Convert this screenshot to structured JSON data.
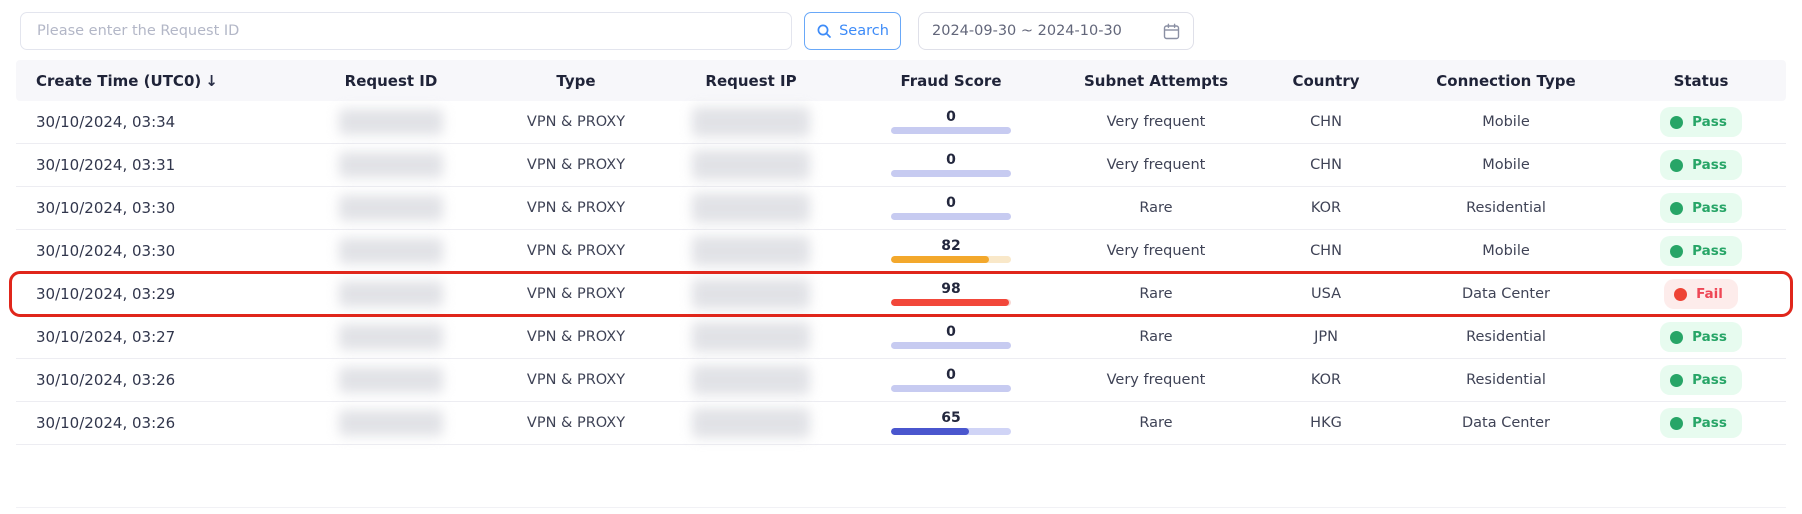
{
  "toolbar": {
    "search_placeholder": "Please enter the Request ID",
    "search_label": "Search",
    "date_range": "2024-09-30 ~ 2024-10-30",
    "icons": {
      "search": "search-icon",
      "calendar": "calendar-icon"
    },
    "accent_blue": "#3d8bf8"
  },
  "table": {
    "columns": [
      "Create Time (UTC0)",
      "Request ID",
      "Type",
      "Request IP",
      "Fraud Score",
      "Subnet Attempts",
      "Country",
      "Connection Type",
      "Status"
    ],
    "sort": {
      "column": "Create Time (UTC0)",
      "direction": "desc",
      "icon": "↓",
      "icon_name": "sort-desc-icon"
    },
    "status_styles": {
      "Pass": {
        "bg": "#e7fbef",
        "dot": "#27a567",
        "text": "#27a567"
      },
      "Fail": {
        "bg": "#fdeceb",
        "dot": "#ee4335",
        "text": "#ee4756"
      }
    },
    "rows": [
      {
        "create_time": "30/10/2024, 03:34",
        "request_id": "[redacted]",
        "type": "VPN & PROXY",
        "request_ip": "[redacted]",
        "fraud_score": 0,
        "bar_fill": "#c7cbf1",
        "bar_track": "#c7cbf1",
        "subnet_attempts": "Very frequent",
        "country": "CHN",
        "connection_type": "Mobile",
        "status": "Pass",
        "highlighted": false
      },
      {
        "create_time": "30/10/2024, 03:31",
        "request_id": "[redacted]",
        "type": "VPN & PROXY",
        "request_ip": "[redacted]",
        "fraud_score": 0,
        "bar_fill": "#c7cbf1",
        "bar_track": "#c7cbf1",
        "subnet_attempts": "Very frequent",
        "country": "CHN",
        "connection_type": "Mobile",
        "status": "Pass",
        "highlighted": false
      },
      {
        "create_time": "30/10/2024, 03:30",
        "request_id": "[redacted]",
        "type": "VPN & PROXY",
        "request_ip": "[redacted]",
        "fraud_score": 0,
        "bar_fill": "#c7cbf1",
        "bar_track": "#c7cbf1",
        "subnet_attempts": "Rare",
        "country": "KOR",
        "connection_type": "Residential",
        "status": "Pass",
        "highlighted": false
      },
      {
        "create_time": "30/10/2024, 03:30",
        "request_id": "[redacted]",
        "type": "VPN & PROXY",
        "request_ip": "[redacted]",
        "fraud_score": 82,
        "bar_fill": "#f3a82c",
        "bar_track": "#f9e8c9",
        "subnet_attempts": "Very frequent",
        "country": "CHN",
        "connection_type": "Mobile",
        "status": "Pass",
        "highlighted": false
      },
      {
        "create_time": "30/10/2024, 03:29",
        "request_id": "[redacted]",
        "type": "VPN & PROXY",
        "request_ip": "[redacted]",
        "fraud_score": 98,
        "bar_fill": "#f2473a",
        "bar_track": "#f7d6d2",
        "subnet_attempts": "Rare",
        "country": "USA",
        "connection_type": "Data Center",
        "status": "Fail",
        "highlighted": true
      },
      {
        "create_time": "30/10/2024, 03:27",
        "request_id": "[redacted]",
        "type": "VPN & PROXY",
        "request_ip": "[redacted]",
        "fraud_score": 0,
        "bar_fill": "#c7cbf1",
        "bar_track": "#c7cbf1",
        "subnet_attempts": "Rare",
        "country": "JPN",
        "connection_type": "Residential",
        "status": "Pass",
        "highlighted": false
      },
      {
        "create_time": "30/10/2024, 03:26",
        "request_id": "[redacted]",
        "type": "VPN & PROXY",
        "request_ip": "[redacted]",
        "fraud_score": 0,
        "bar_fill": "#c7cbf1",
        "bar_track": "#c7cbf1",
        "subnet_attempts": "Very frequent",
        "country": "KOR",
        "connection_type": "Residential",
        "status": "Pass",
        "highlighted": false
      },
      {
        "create_time": "30/10/2024, 03:26",
        "request_id": "[redacted]",
        "type": "VPN & PROXY",
        "request_ip": "[redacted]",
        "fraud_score": 65,
        "bar_fill": "#4a56ce",
        "bar_track": "#d0d4f6",
        "subnet_attempts": "Rare",
        "country": "HKG",
        "connection_type": "Data Center",
        "status": "Pass",
        "highlighted": false
      }
    ]
  }
}
